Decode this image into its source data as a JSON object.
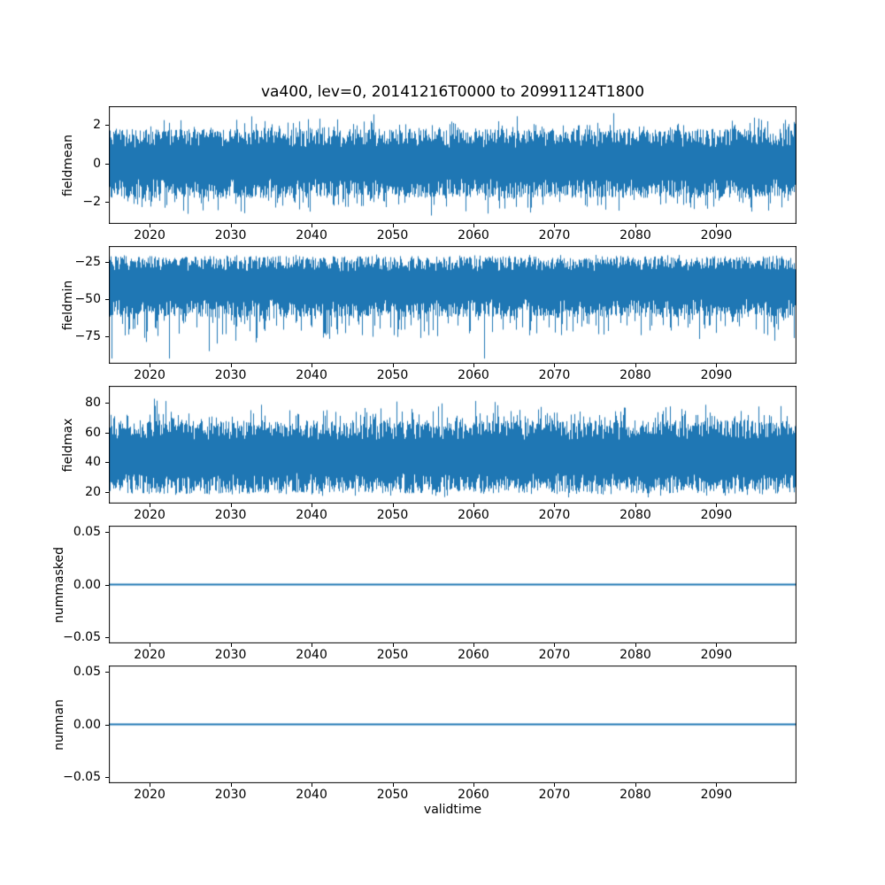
{
  "figure": {
    "title": "va400, lev=0, 20141216T0000 to 20991124T1800",
    "xlabel": "validtime",
    "line_color": "#1f77b4",
    "axes_color": "#000000",
    "background_color": "#ffffff",
    "num_subplots": 5,
    "shared_x_axis": true
  },
  "chart_data": [
    {
      "type": "line",
      "name": "fieldmean",
      "ylabel": "fieldmean",
      "xlim": [
        2014.96,
        2099.9
      ],
      "xtick_values": [
        2020,
        2030,
        2040,
        2050,
        2060,
        2070,
        2080,
        2090
      ],
      "xtick_labels": [
        "2020",
        "2030",
        "2040",
        "2050",
        "2060",
        "2070",
        "2080",
        "2090"
      ],
      "ylim": [
        -3.15,
        2.97
      ],
      "ytick_values": [
        2,
        0,
        -2
      ],
      "ytick_labels": [
        "2",
        "0",
        "−2"
      ],
      "grid": false,
      "legend": "none",
      "series": {
        "name": "fieldmean",
        "kind": "noise",
        "mean": 0,
        "typical_range": [
          -1.8,
          1.8
        ],
        "extreme_range": [
          -3.1,
          2.85
        ]
      },
      "description": "High-frequency noisy time series oscillating around 0 between about -3 and 3 over 2015-2099"
    },
    {
      "type": "line",
      "name": "fieldmin",
      "ylabel": "fieldmin",
      "xlim": [
        2014.96,
        2099.9
      ],
      "xtick_values": [
        2020,
        2030,
        2040,
        2050,
        2060,
        2070,
        2080,
        2090
      ],
      "xtick_labels": [
        "2020",
        "2030",
        "2040",
        "2050",
        "2060",
        "2070",
        "2080",
        "2090"
      ],
      "ylim": [
        -93.5,
        -14.3
      ],
      "ytick_values": [
        -25,
        -50,
        -75
      ],
      "ytick_labels": [
        "−25",
        "−50",
        "−75"
      ],
      "grid": false,
      "legend": "none",
      "series": {
        "name": "fieldmin",
        "kind": "noise",
        "mean": -40,
        "typical_range": [
          -62,
          -21
        ],
        "extreme_range": [
          -90,
          -19.5
        ]
      },
      "description": "Noisy time series with dense band near -20 to -60 and downward spikes reaching about -90"
    },
    {
      "type": "line",
      "name": "fieldmax",
      "ylabel": "fieldmax",
      "xlim": [
        2014.96,
        2099.9
      ],
      "xtick_values": [
        2020,
        2030,
        2040,
        2050,
        2060,
        2070,
        2080,
        2090
      ],
      "xtick_labels": [
        "2020",
        "2030",
        "2040",
        "2050",
        "2060",
        "2070",
        "2080",
        "2090"
      ],
      "ylim": [
        12.5,
        91
      ],
      "ytick_values": [
        80,
        60,
        40,
        20
      ],
      "ytick_labels": [
        "80",
        "60",
        "40",
        "20"
      ],
      "grid": false,
      "legend": "none",
      "series": {
        "name": "fieldmax",
        "kind": "noise",
        "mean": 44,
        "typical_range": [
          19,
          68
        ],
        "extreme_range": [
          16,
          86
        ]
      },
      "description": "Noisy time series with dense band about 20 to 68 and upward spikes reaching about 85"
    },
    {
      "type": "line",
      "name": "nummasked",
      "ylabel": "nummasked",
      "xlim": [
        2014.96,
        2099.9
      ],
      "xtick_values": [
        2020,
        2030,
        2040,
        2050,
        2060,
        2070,
        2080,
        2090
      ],
      "xtick_labels": [
        "2020",
        "2030",
        "2040",
        "2050",
        "2060",
        "2070",
        "2080",
        "2090"
      ],
      "ylim": [
        -0.056,
        0.056
      ],
      "ytick_values": [
        0.05,
        0,
        -0.05
      ],
      "ytick_labels": [
        "0.05",
        "0.00",
        "−0.05"
      ],
      "grid": false,
      "legend": "none",
      "series": {
        "name": "nummasked",
        "kind": "constant",
        "value": 0
      },
      "description": "Constant flat line at 0.00 across the full time range"
    },
    {
      "type": "line",
      "name": "numnan",
      "ylabel": "numnan",
      "xlim": [
        2014.96,
        2099.9
      ],
      "xtick_values": [
        2020,
        2030,
        2040,
        2050,
        2060,
        2070,
        2080,
        2090
      ],
      "xtick_labels": [
        "2020",
        "2030",
        "2040",
        "2050",
        "2060",
        "2070",
        "2080",
        "2090"
      ],
      "ylim": [
        -0.056,
        0.056
      ],
      "ytick_values": [
        0.05,
        0,
        -0.05
      ],
      "ytick_labels": [
        "0.05",
        "0.00",
        "−0.05"
      ],
      "grid": false,
      "legend": "none",
      "series": {
        "name": "numnan",
        "kind": "constant",
        "value": 0
      },
      "description": "Constant flat line at 0.00 across the full time range"
    }
  ]
}
